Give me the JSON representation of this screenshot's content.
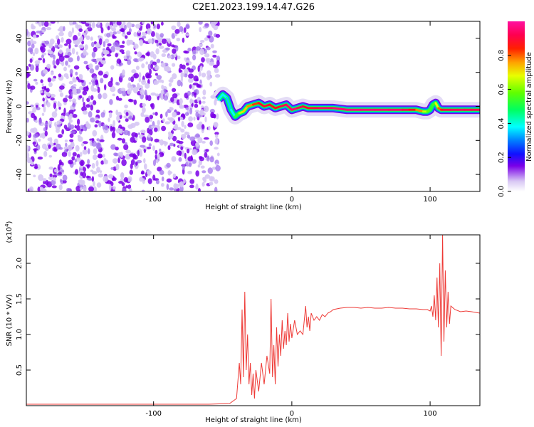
{
  "title": "C2E1.2023.199.14.47.G26",
  "colors": {
    "accent": "#ee3a36",
    "frame": "#000000"
  },
  "chart_data": [
    {
      "type": "heatmap",
      "xlabel": "Height of straight line (km)",
      "ylabel": "Frequency (Hz)",
      "xlim": [
        -192,
        136
      ],
      "ylim": [
        -50,
        50
      ],
      "x_ticks": [
        -100,
        0,
        100
      ],
      "x_tick_labels": [
        "-100",
        "0",
        "100"
      ],
      "y_ticks": [
        -40,
        -20,
        0,
        20,
        40
      ],
      "y_tick_labels": [
        "-40",
        "-20",
        "0",
        "20",
        "40"
      ],
      "colorbar": {
        "label": "Normalized spectral amplitude",
        "range": [
          0,
          1
        ],
        "ticks": [
          0.0,
          0.2,
          0.4,
          0.6,
          0.8
        ],
        "tick_labels": [
          "0.0",
          "0.2",
          "0.4",
          "0.6",
          "0.8"
        ]
      },
      "noise_region_x": [
        -192,
        -53
      ],
      "trace": {
        "x": [
          -53,
          -50,
          -47,
          -44,
          -41,
          -38,
          -35,
          -32,
          -28,
          -24,
          -20,
          -16,
          -12,
          -8,
          -4,
          0,
          4,
          8,
          12,
          16,
          20,
          30,
          40,
          50,
          60,
          70,
          80,
          85,
          90,
          95,
          98,
          100,
          102,
          104,
          106,
          108,
          110,
          115,
          120,
          125,
          130,
          136
        ],
        "y": [
          4,
          7,
          5,
          -2,
          -6,
          -4,
          -3,
          0,
          1,
          2,
          0,
          1,
          -1,
          0,
          1,
          -2,
          -1,
          0,
          -1,
          -1,
          -1,
          -1,
          -2,
          -2,
          -2,
          -2,
          -2,
          -2,
          -2,
          -3,
          -3,
          -2,
          1,
          2,
          -1,
          -2,
          -2,
          -2,
          -2,
          -2,
          -2,
          -2
        ],
        "amplitude": [
          0.4,
          0.35,
          0.4,
          0.3,
          0.45,
          0.6,
          0.7,
          0.75,
          0.8,
          0.85,
          0.9,
          0.88,
          0.85,
          0.9,
          0.92,
          0.95,
          0.95,
          0.9,
          0.88,
          0.9,
          0.92,
          0.95,
          0.96,
          0.96,
          0.95,
          0.95,
          0.94,
          0.9,
          0.85,
          0.7,
          0.6,
          0.55,
          0.5,
          0.6,
          0.75,
          0.85,
          0.9,
          0.92,
          0.93,
          0.93,
          0.92,
          0.92
        ]
      }
    },
    {
      "type": "line",
      "xlabel": "Height of straight line (km)",
      "ylabel": "SNR (10 * V/V)",
      "y_scale_label": "(x10",
      "y_scale_exp": "4",
      "y_scale_close": ")",
      "xlim": [
        -192,
        136
      ],
      "ylim": [
        0,
        2.4
      ],
      "x_ticks": [
        -100,
        0,
        100
      ],
      "x_tick_labels": [
        "-100",
        "0",
        "100"
      ],
      "y_ticks": [
        0.5,
        1.0,
        1.5,
        2.0
      ],
      "y_tick_labels": [
        "0.5",
        "1.0",
        "1.5",
        "2.0"
      ],
      "series": [
        {
          "color": "#ee3a36",
          "x": [
            -192,
            -150,
            -100,
            -60,
            -45,
            -40,
            -38,
            -37,
            -36,
            -35,
            -34,
            -33,
            -32,
            -31,
            -30,
            -29,
            -28,
            -27,
            -26,
            -24,
            -22,
            -20,
            -18,
            -16,
            -15,
            -14,
            -13,
            -12,
            -11,
            -10,
            -9,
            -8,
            -7,
            -6,
            -5,
            -4,
            -3,
            -2,
            -1,
            0,
            2,
            4,
            6,
            8,
            10,
            11,
            12,
            13,
            14,
            16,
            18,
            20,
            22,
            24,
            26,
            28,
            30,
            35,
            40,
            45,
            50,
            55,
            60,
            65,
            70,
            75,
            80,
            85,
            90,
            95,
            98,
            100,
            101,
            102,
            103,
            104,
            105,
            106,
            107,
            108,
            109,
            110,
            111,
            112,
            113,
            114,
            115,
            118,
            122,
            126,
            130,
            136
          ],
          "y": [
            0.02,
            0.02,
            0.02,
            0.02,
            0.03,
            0.1,
            0.6,
            0.3,
            1.35,
            0.4,
            1.6,
            0.5,
            1.0,
            0.3,
            0.6,
            0.15,
            0.45,
            0.1,
            0.5,
            0.2,
            0.6,
            0.3,
            0.7,
            0.45,
            1.5,
            0.4,
            0.85,
            0.3,
            1.1,
            0.55,
            1.0,
            0.7,
            1.2,
            0.8,
            1.05,
            0.85,
            1.3,
            0.9,
            1.15,
            0.95,
            1.2,
            1.0,
            1.05,
            1.0,
            1.4,
            1.1,
            1.25,
            1.05,
            1.3,
            1.2,
            1.25,
            1.2,
            1.28,
            1.25,
            1.3,
            1.32,
            1.35,
            1.37,
            1.38,
            1.38,
            1.37,
            1.38,
            1.37,
            1.37,
            1.38,
            1.37,
            1.37,
            1.36,
            1.36,
            1.35,
            1.35,
            1.33,
            1.4,
            1.25,
            1.55,
            1.2,
            1.8,
            1.1,
            2.0,
            0.7,
            2.4,
            0.9,
            1.9,
            1.1,
            1.6,
            1.15,
            1.4,
            1.35,
            1.32,
            1.33,
            1.32,
            1.3
          ]
        }
      ]
    }
  ]
}
